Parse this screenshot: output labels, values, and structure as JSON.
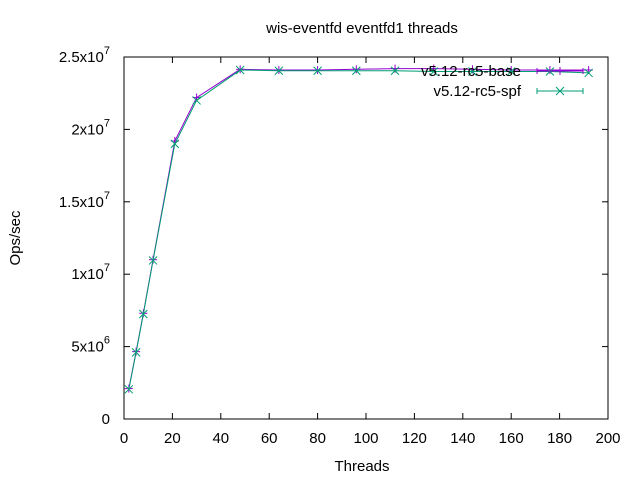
{
  "chart_data": {
    "type": "line",
    "title": "wis-eventfd eventfd1 threads",
    "xlabel": "Threads",
    "ylabel": "Ops/sec",
    "xlim": [
      0,
      200
    ],
    "ylim": [
      0,
      25000000
    ],
    "x_ticks": [
      {
        "value": 0,
        "label": "0"
      },
      {
        "value": 20,
        "label": "20"
      },
      {
        "value": 40,
        "label": "40"
      },
      {
        "value": 60,
        "label": "60"
      },
      {
        "value": 80,
        "label": "80"
      },
      {
        "value": 100,
        "label": "100"
      },
      {
        "value": 120,
        "label": "120"
      },
      {
        "value": 140,
        "label": "140"
      },
      {
        "value": 160,
        "label": "160"
      },
      {
        "value": 180,
        "label": "180"
      },
      {
        "value": 200,
        "label": "200"
      }
    ],
    "y_ticks": [
      {
        "value": 0,
        "mantissa": "0",
        "exponent": ""
      },
      {
        "value": 5000000,
        "mantissa": "5x10",
        "exponent": "6"
      },
      {
        "value": 10000000,
        "mantissa": "1x10",
        "exponent": "7"
      },
      {
        "value": 15000000,
        "mantissa": "1.5x10",
        "exponent": "7"
      },
      {
        "value": 20000000,
        "mantissa": "2x10",
        "exponent": "7"
      },
      {
        "value": 25000000,
        "mantissa": "2.5x10",
        "exponent": "7"
      }
    ],
    "grid": false,
    "legend_position": "top-right",
    "series": [
      {
        "name": "v5.12-rc5-base",
        "color": "#9400d3",
        "marker": "plus",
        "x": [
          2,
          5,
          8,
          12,
          21,
          30,
          48,
          64,
          80,
          96,
          112,
          128,
          144,
          160,
          176,
          192
        ],
        "y": [
          2100000,
          4650000,
          7300000,
          11000000,
          19200000,
          22200000,
          24150000,
          24100000,
          24100000,
          24150000,
          24200000,
          24200000,
          24150000,
          24100000,
          24100000,
          24100000
        ]
      },
      {
        "name": "v5.12-rc5-spf",
        "color": "#009e73",
        "marker": "x",
        "x": [
          2,
          5,
          8,
          12,
          21,
          30,
          48,
          64,
          80,
          96,
          112,
          128,
          144,
          160,
          176,
          192
        ],
        "y": [
          2050000,
          4600000,
          7250000,
          10950000,
          19000000,
          22000000,
          24100000,
          24050000,
          24050000,
          24050000,
          24050000,
          24000000,
          24000000,
          24000000,
          24000000,
          23900000
        ]
      }
    ]
  }
}
